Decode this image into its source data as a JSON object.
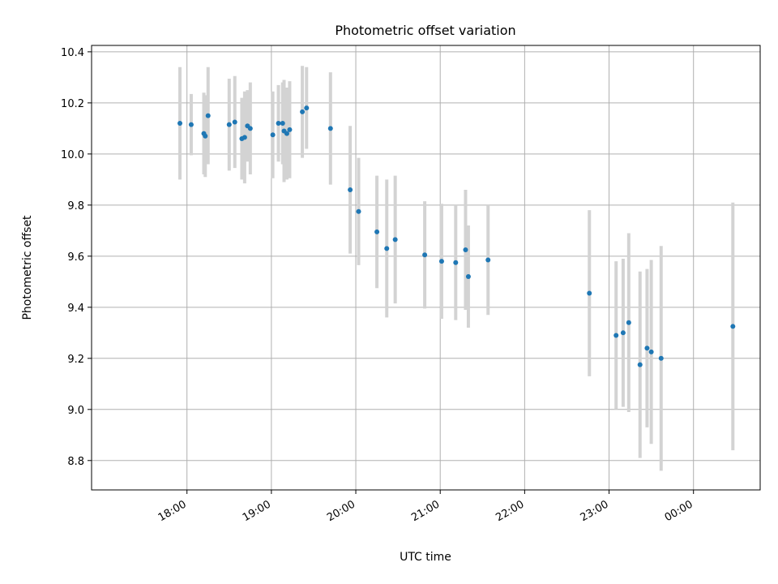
{
  "chart_data": {
    "type": "scatter",
    "title": "Photometric offset variation",
    "xlabel": "UTC time",
    "ylabel": "Photometric offset",
    "x_tick_labels": [
      "18:00",
      "19:00",
      "20:00",
      "21:00",
      "22:00",
      "23:00",
      "00:00"
    ],
    "x_tick_values_hours": [
      18,
      19,
      20,
      21,
      22,
      23,
      24
    ],
    "xlim_hours": [
      16.87,
      24.79
    ],
    "y_tick_labels": [
      "8.8",
      "9.0",
      "9.2",
      "9.4",
      "9.6",
      "9.8",
      "10.0",
      "10.2",
      "10.4"
    ],
    "y_tick_values": [
      8.8,
      9.0,
      9.2,
      9.4,
      9.6,
      9.8,
      10.0,
      10.2,
      10.4
    ],
    "ylim": [
      8.685,
      10.425
    ],
    "grid": true,
    "colors": {
      "point": "#1f77b4",
      "errorbar": "#d3d3d3",
      "grid": "#b0b0b0"
    },
    "points": [
      {
        "t": "17:55",
        "y": 10.12,
        "err": 0.22
      },
      {
        "t": "18:03",
        "y": 10.115,
        "err": 0.12
      },
      {
        "t": "18:12",
        "y": 10.08,
        "err": 0.16
      },
      {
        "t": "18:13",
        "y": 10.07,
        "err": 0.16
      },
      {
        "t": "18:15",
        "y": 10.15,
        "err": 0.19
      },
      {
        "t": "18:30",
        "y": 10.115,
        "err": 0.18
      },
      {
        "t": "18:34",
        "y": 10.125,
        "err": 0.18
      },
      {
        "t": "18:39",
        "y": 10.06,
        "err": 0.16
      },
      {
        "t": "18:41",
        "y": 10.065,
        "err": 0.18
      },
      {
        "t": "18:43",
        "y": 10.11,
        "err": 0.14
      },
      {
        "t": "18:45",
        "y": 10.1,
        "err": 0.18
      },
      {
        "t": "19:01",
        "y": 10.075,
        "err": 0.17
      },
      {
        "t": "19:05",
        "y": 10.12,
        "err": 0.15
      },
      {
        "t": "19:08",
        "y": 10.12,
        "err": 0.16
      },
      {
        "t": "19:09",
        "y": 10.09,
        "err": 0.2
      },
      {
        "t": "19:11",
        "y": 10.08,
        "err": 0.18
      },
      {
        "t": "19:13",
        "y": 10.095,
        "err": 0.19
      },
      {
        "t": "19:22",
        "y": 10.165,
        "err": 0.18
      },
      {
        "t": "19:25",
        "y": 10.18,
        "err": 0.16
      },
      {
        "t": "19:42",
        "y": 10.1,
        "err": 0.22
      },
      {
        "t": "19:56",
        "y": 9.86,
        "err": 0.25
      },
      {
        "t": "20:02",
        "y": 9.775,
        "err": 0.21
      },
      {
        "t": "20:15",
        "y": 9.695,
        "err": 0.22
      },
      {
        "t": "20:22",
        "y": 9.63,
        "err": 0.27
      },
      {
        "t": "20:28",
        "y": 9.665,
        "err": 0.25
      },
      {
        "t": "20:49",
        "y": 9.605,
        "err": 0.21
      },
      {
        "t": "21:01",
        "y": 9.58,
        "err": 0.225
      },
      {
        "t": "21:11",
        "y": 9.575,
        "err": 0.225
      },
      {
        "t": "21:18",
        "y": 9.625,
        "err": 0.235
      },
      {
        "t": "21:20",
        "y": 9.52,
        "err": 0.2
      },
      {
        "t": "21:34",
        "y": 9.585,
        "err": 0.215
      },
      {
        "t": "22:46",
        "y": 9.455,
        "err": 0.325
      },
      {
        "t": "23:05",
        "y": 9.29,
        "err": 0.29
      },
      {
        "t": "23:10",
        "y": 9.3,
        "err": 0.29
      },
      {
        "t": "23:14",
        "y": 9.34,
        "err": 0.35
      },
      {
        "t": "23:22",
        "y": 9.175,
        "err": 0.365
      },
      {
        "t": "23:27",
        "y": 9.24,
        "err": 0.31
      },
      {
        "t": "23:30",
        "y": 9.225,
        "err": 0.36
      },
      {
        "t": "23:37",
        "y": 9.2,
        "err": 0.44
      },
      {
        "t": "00:28",
        "y": 9.325,
        "err": 0.485
      }
    ]
  }
}
